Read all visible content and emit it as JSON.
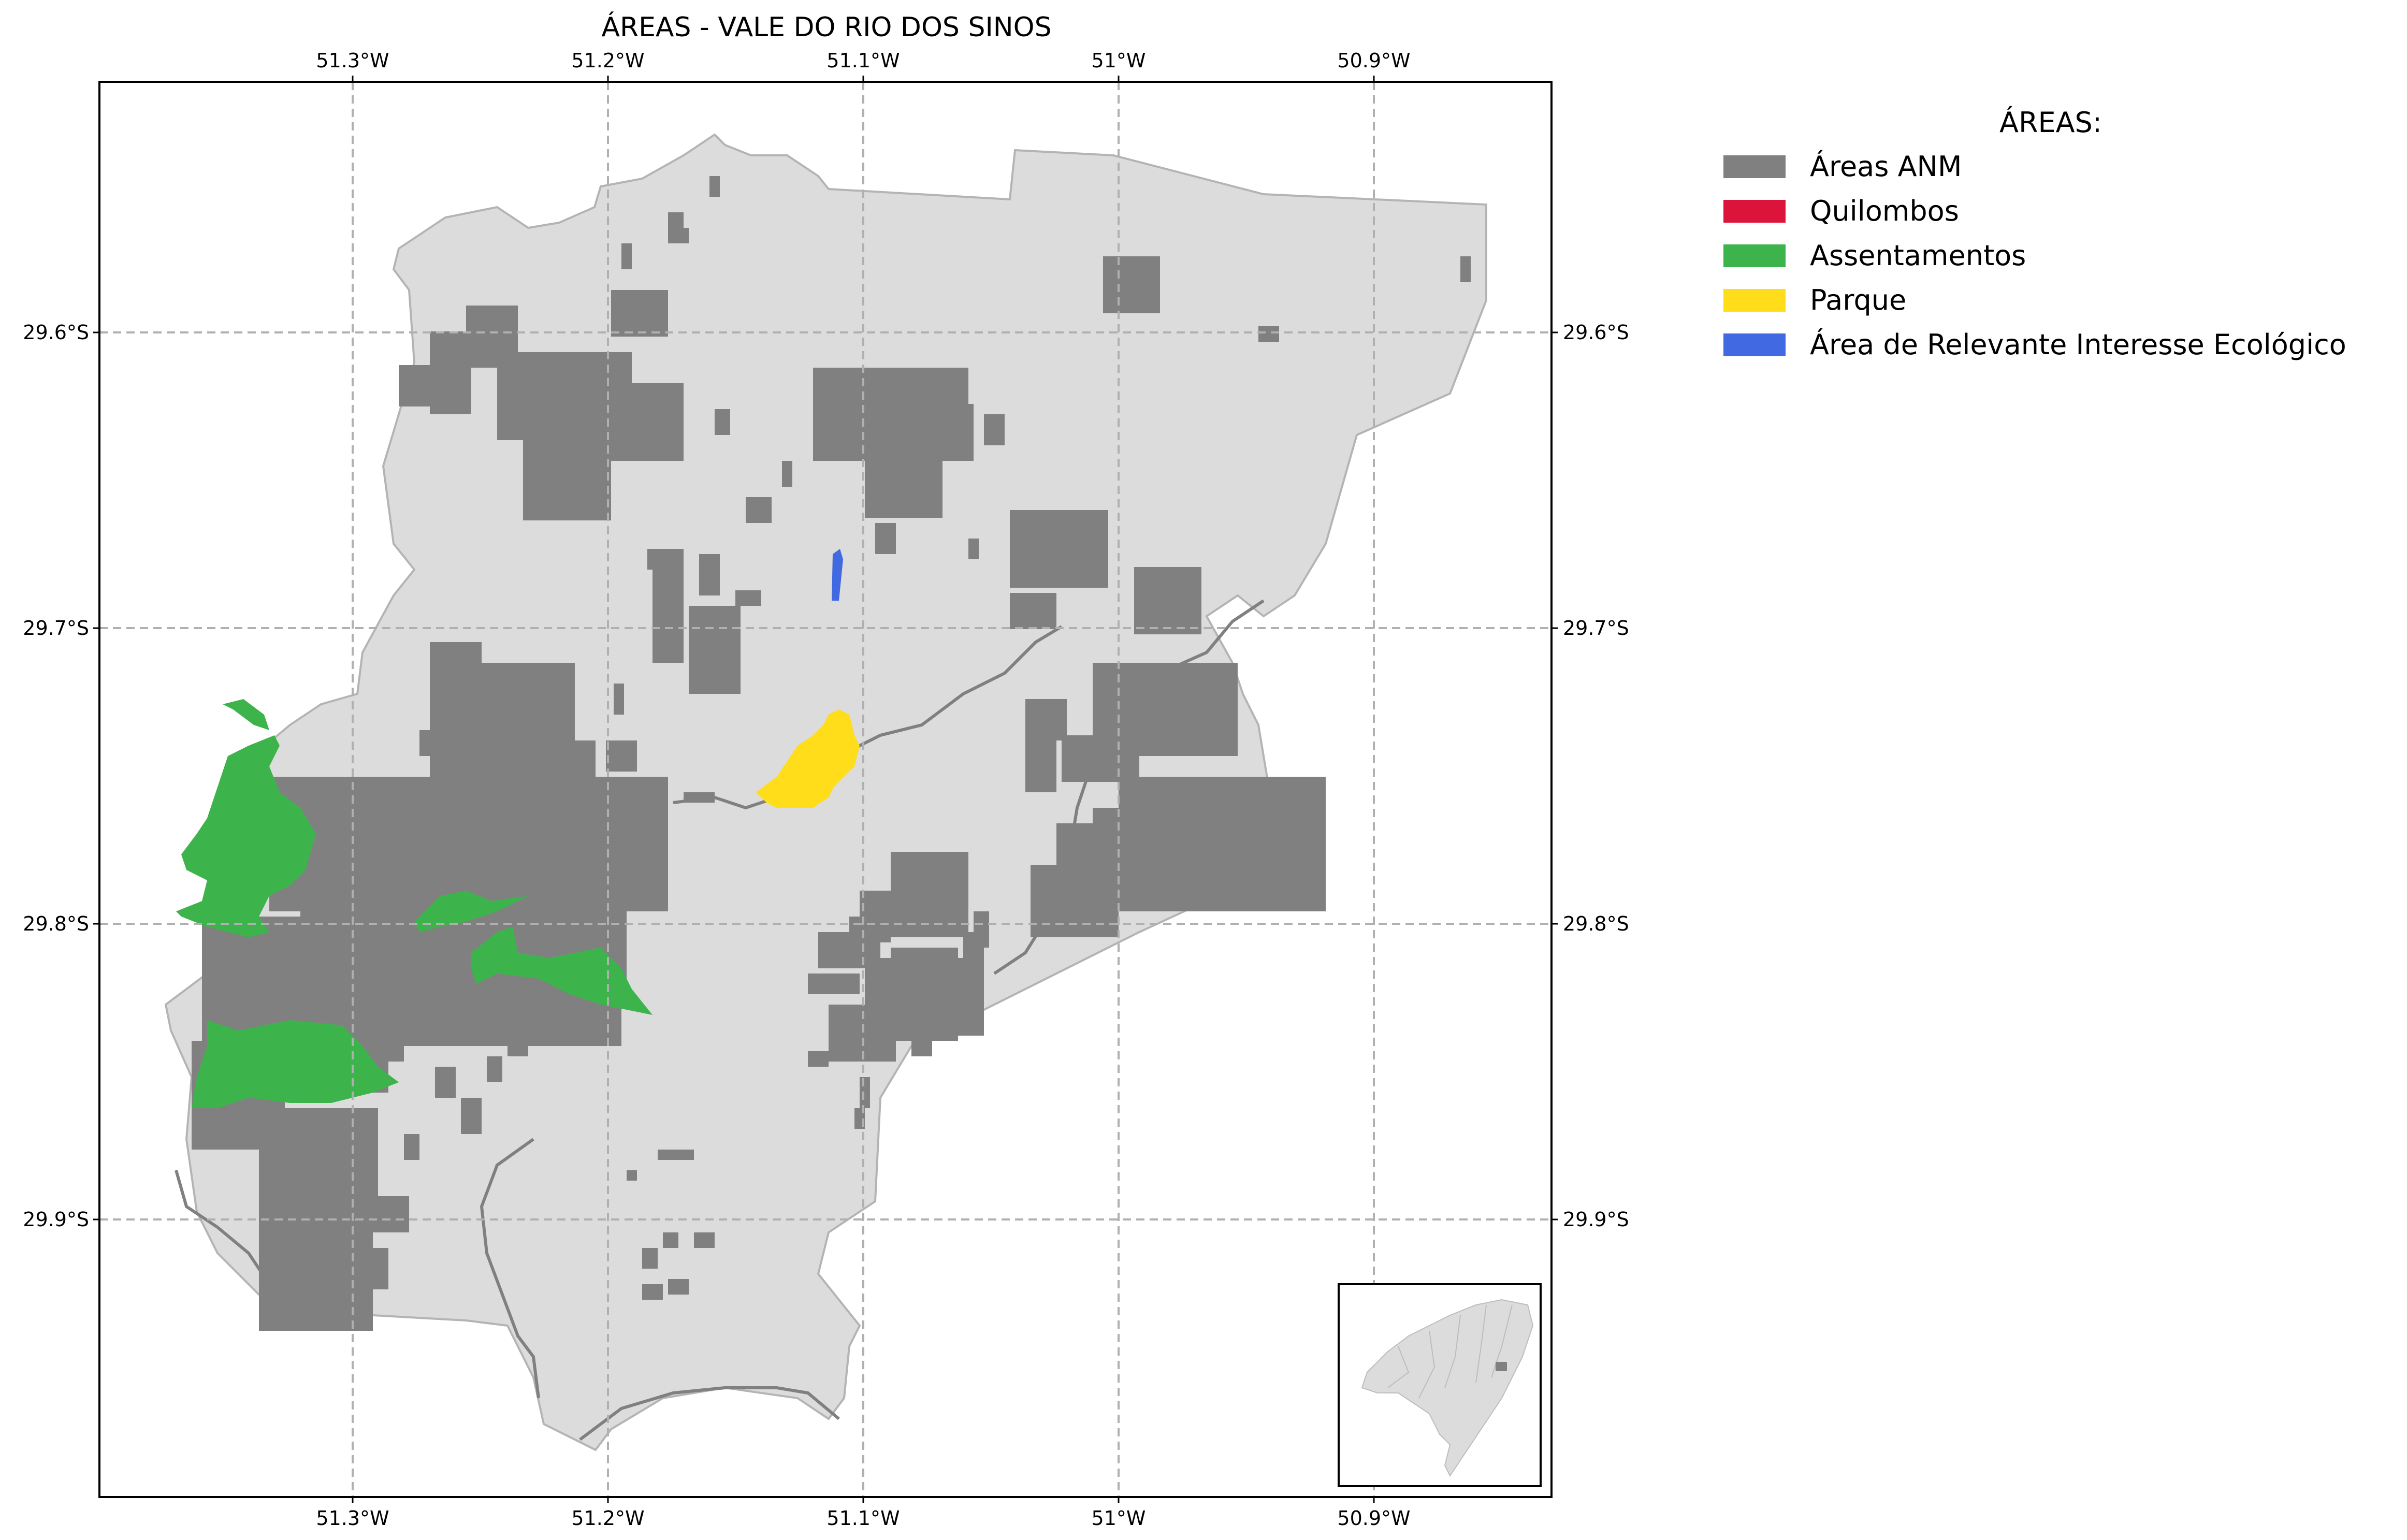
{
  "map": {
    "title": "ÁREAS - VALE DO RIO DOS SINOS",
    "lon_ticks": [
      "51.3°W",
      "51.2°W",
      "51.1°W",
      "51°W",
      "50.9°W"
    ],
    "lat_ticks": [
      "29.6°S",
      "29.7°S",
      "29.8°S",
      "29.9°S"
    ],
    "grid": true
  },
  "legend": {
    "title": "ÁREAS:",
    "placement": "right",
    "items": [
      {
        "label": "Áreas ANM",
        "color": "#808080"
      },
      {
        "label": "Quilombos",
        "color": "#dc143c"
      },
      {
        "label": "Assentamentos",
        "color": "#3cb44b"
      },
      {
        "label": "Parque",
        "color": "#ffdd1a"
      },
      {
        "label": "Área de Relevante Interesse Ecológico",
        "color": "#4169e1"
      }
    ]
  },
  "colors": {
    "region_fill": "#dcdcdc",
    "anm": "#808080",
    "assentamentos": "#3cb44b",
    "parque": "#ffdd1a",
    "arie": "#4169e1"
  }
}
